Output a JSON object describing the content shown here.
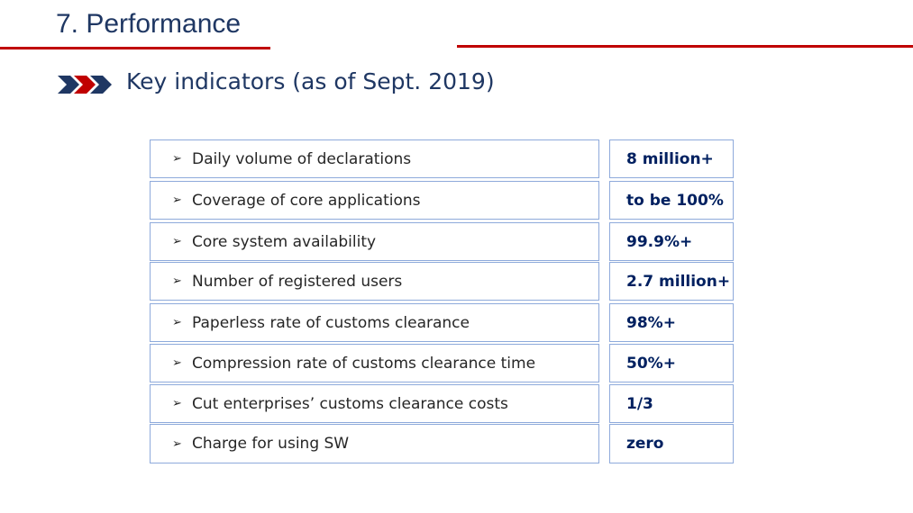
{
  "slide": {
    "title": "7. Performance",
    "subtitle": "Key indicators (as of Sept. 2019)",
    "subtitle_icon": "triple-chevron-arrow-icon",
    "colors": {
      "accent_red": "#c00000",
      "navy": "#1f3763",
      "border": "#8eaadb"
    }
  },
  "indicators": {
    "bullet_icon": "arrowhead-bullet-icon",
    "rows": [
      {
        "label": "Daily volume of declarations",
        "value": "8 million+"
      },
      {
        "label": "Coverage of core applications",
        "value": "to be 100%"
      },
      {
        "label": "Core system availability",
        "value": "99.9%+"
      },
      {
        "label": "Number of registered users",
        "value": "2.7 million+"
      },
      {
        "label": "Paperless rate of customs clearance",
        "value": "98%+"
      },
      {
        "label": "Compression rate of customs clearance time",
        "value": "50%+"
      },
      {
        "label": "Cut enterprises’ customs clearance costs",
        "value": "1/3"
      },
      {
        "label": "Charge for using SW",
        "value": "zero"
      }
    ]
  }
}
